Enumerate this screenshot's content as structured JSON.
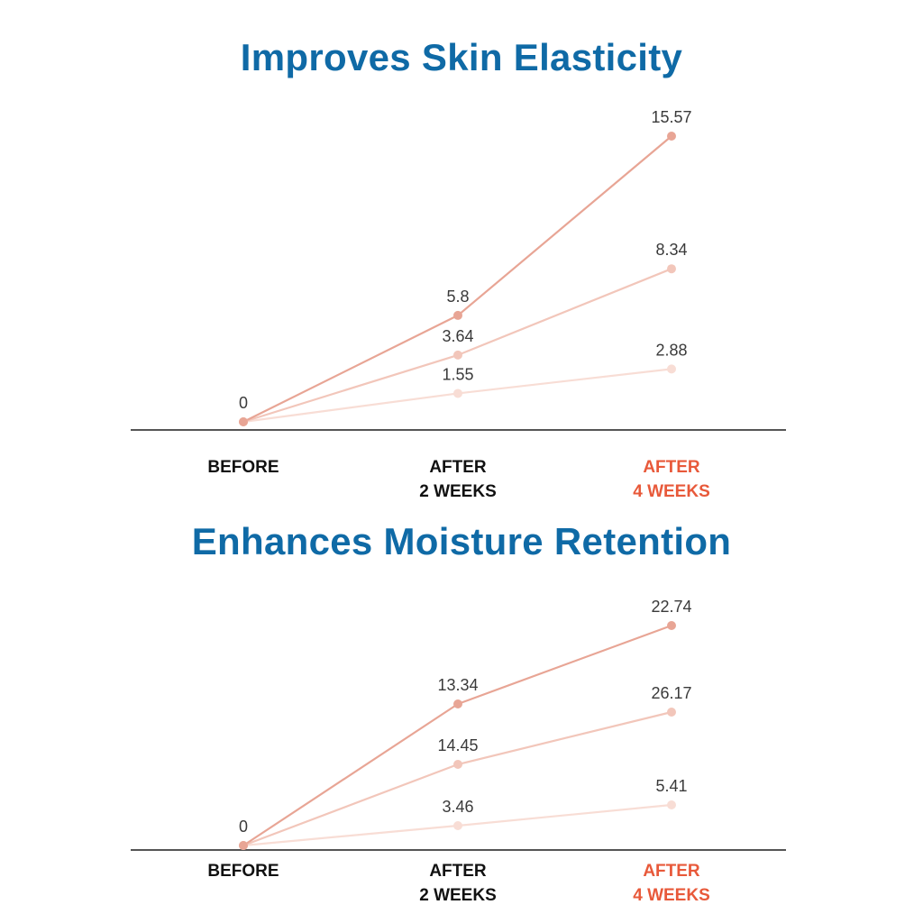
{
  "charts": [
    {
      "title": "Improves Skin Elasticity"
    },
    {
      "title": "Enhances Moisture Retention"
    }
  ],
  "colors": {
    "title": "#0f6aa6",
    "highlight": "#e8593a",
    "axis": "#555555",
    "series": [
      "#e8a595",
      "#f2c6ba",
      "#f8ddd5"
    ]
  },
  "chart_data": [
    {
      "type": "line",
      "title": "Improves Skin Elasticity",
      "categories": [
        {
          "line1": "BEFORE",
          "line2": ""
        },
        {
          "line1": "AFTER",
          "line2": "2 WEEKS"
        },
        {
          "line1": "AFTER",
          "line2": "4 WEEKS"
        }
      ],
      "highlight_category": 2,
      "series": [
        {
          "values": [
            0,
            5.8,
            15.57
          ]
        },
        {
          "values": [
            0,
            3.64,
            8.34
          ]
        },
        {
          "values": [
            0,
            1.55,
            2.88
          ]
        }
      ],
      "value_labels": [
        {
          "text": "0",
          "series": 0,
          "point": 0
        },
        {
          "text": "5.8",
          "series": 0,
          "point": 1
        },
        {
          "text": "15.57",
          "series": 0,
          "point": 2
        },
        {
          "text": "3.64",
          "series": 1,
          "point": 1
        },
        {
          "text": "8.34",
          "series": 1,
          "point": 2
        },
        {
          "text": "1.55",
          "series": 2,
          "point": 1
        },
        {
          "text": "2.88",
          "series": 2,
          "point": 2
        }
      ],
      "ylim": [
        0,
        16.5
      ],
      "grid": false,
      "legend": "none"
    },
    {
      "type": "line",
      "title": "Enhances Moisture Retention",
      "categories": [
        {
          "line1": "BEFORE",
          "line2": ""
        },
        {
          "line1": "AFTER",
          "line2": "2 WEEKS"
        },
        {
          "line1": "AFTER",
          "line2": "4 WEEKS"
        }
      ],
      "highlight_category": 2,
      "series": [
        {
          "values": [
            0,
            13.34,
            22.74
          ]
        },
        {
          "values": [
            0,
            14.45,
            26.17
          ]
        },
        {
          "values": [
            0,
            3.46,
            5.41
          ]
        }
      ],
      "value_labels": [
        {
          "text": "0",
          "series": 0,
          "point": 0
        },
        {
          "text": "13.34",
          "series": 0,
          "point": 1
        },
        {
          "text": "22.74",
          "series": 0,
          "point": 2
        },
        {
          "text": "14.45",
          "series": 1,
          "point": 1
        },
        {
          "text": "26.17",
          "series": 1,
          "point": 2
        },
        {
          "text": "3.46",
          "series": 2,
          "point": 1
        },
        {
          "text": "5.41",
          "series": 2,
          "point": 2
        }
      ],
      "grid": false,
      "legend": "none"
    }
  ]
}
